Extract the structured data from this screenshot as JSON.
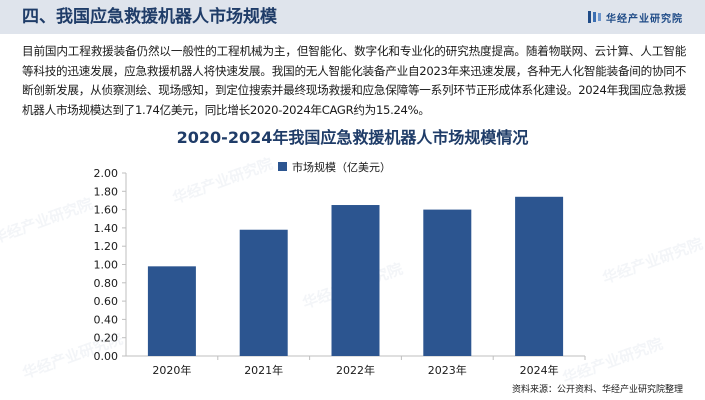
{
  "header": {
    "section_title": "四、我国应急救援机器人市场规模",
    "brand": "华经产业研究院"
  },
  "intro_text": "目前国内工程救援装备仍然以一般性的工程机械为主，但智能化、数字化和专业化的研究热度提高。随着物联网、云计算、人工智能等科技的迅速发展，应急救援机器人将快速发展。我国的无人智能化装备产业自2023年来迅速发展，各种无人化智能装备间的协同不断创新发展，从侦察测绘、现场感知，到定位搜索并最终现场救援和应急保障等一系列环节正形成体系化建设。2024年我国应急救援机器人市场规模达到了1.74亿美元，同比增长2020-2024年CAGR约为15.24%。",
  "watermark": "华经产业研究院",
  "source": "资料来源：公开资料、华经产业研究院整理",
  "colors": {
    "bar": "#2c5590",
    "title": "#1f3c68",
    "header_bg": "#dfe4ec"
  },
  "chart_data": {
    "type": "bar",
    "title": "2020-2024年我国应急救援机器人市场规模情况",
    "categories": [
      "2020年",
      "2021年",
      "2022年",
      "2023年",
      "2024年"
    ],
    "series": [
      {
        "name": "市场规模（亿美元）",
        "values": [
          0.98,
          1.38,
          1.65,
          1.6,
          1.74
        ]
      }
    ],
    "ylim": [
      0,
      2.0
    ],
    "yticks": [
      "0.00",
      "0.20",
      "0.40",
      "0.60",
      "0.80",
      "1.00",
      "1.20",
      "1.40",
      "1.60",
      "1.80",
      "2.00"
    ],
    "legend_position": "top-center",
    "grid": false
  }
}
